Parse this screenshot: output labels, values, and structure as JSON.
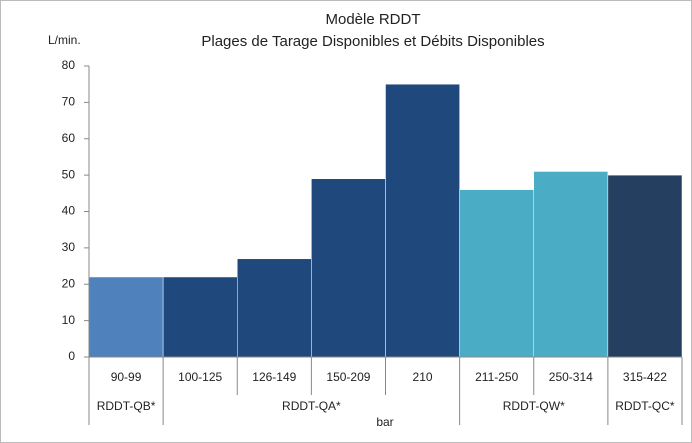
{
  "chart_data": {
    "type": "bar",
    "title": "Modèle RDDT",
    "subtitle": "Plages de Tarage Disponibles et Débits Disponibles",
    "y_label": "L/min.",
    "x_label": "bar",
    "categories": [
      "90-99",
      "100-125",
      "126-149",
      "150-209",
      "210",
      "211-250",
      "250-314",
      "315-422"
    ],
    "values": [
      22,
      22,
      27,
      49,
      75,
      46,
      51,
      50
    ],
    "colors": [
      "#4f81bd",
      "#1f497d",
      "#1f497d",
      "#1f497d",
      "#1f497d",
      "#4bacc6",
      "#4bacc6",
      "#243f60"
    ],
    "groups": [
      {
        "label": "RDDT-QB*",
        "count": 1
      },
      {
        "label": "RDDT-QA*",
        "count": 4
      },
      {
        "label": "RDDT-QW*",
        "count": 2
      },
      {
        "label": "RDDT-QC*",
        "count": 1
      }
    ],
    "ylim": [
      0,
      80
    ],
    "yticks": [
      0,
      10,
      20,
      30,
      40,
      50,
      60,
      70,
      80
    ],
    "grid": false
  }
}
